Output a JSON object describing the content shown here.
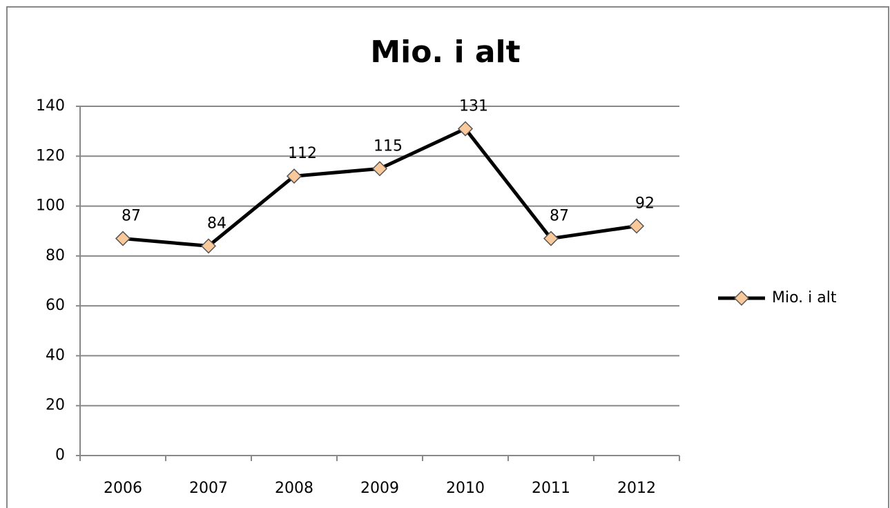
{
  "chart_data": {
    "type": "line",
    "title": "Mio. i alt",
    "categories": [
      "2006",
      "2007",
      "2008",
      "2009",
      "2010",
      "2011",
      "2012"
    ],
    "series": [
      {
        "name": "Mio. i alt",
        "color": "#000000",
        "marker_color": "#f9c89b",
        "values": [
          87,
          84,
          112,
          115,
          131,
          87,
          92
        ]
      }
    ],
    "ylim": [
      0,
      140
    ],
    "yticks": [
      0,
      20,
      40,
      60,
      80,
      100,
      120,
      140
    ],
    "grid": true,
    "legend": "right"
  }
}
